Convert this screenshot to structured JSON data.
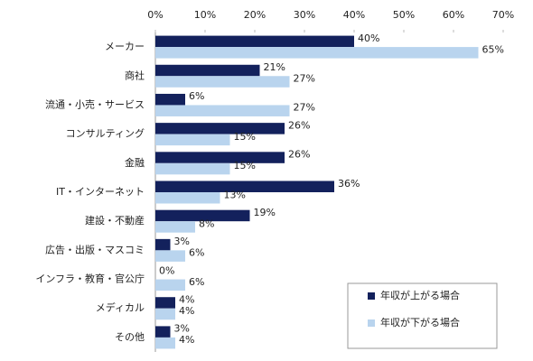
{
  "chart_data": {
    "type": "barh",
    "categories": [
      "メーカー",
      "商社",
      "流通・小売・サービス",
      "コンサルティング",
      "金融",
      "IT・インターネット",
      "建設・不動産",
      "広告・出版・マスコミ",
      "インフラ・教育・官公庁",
      "メディカル",
      "その他"
    ],
    "series": [
      {
        "name": "年収が上がる場合",
        "color": "#13215c",
        "values": [
          40,
          21,
          6,
          26,
          26,
          36,
          19,
          3,
          0,
          4,
          3
        ],
        "value_labels": [
          "40%",
          "21%",
          "6%",
          "26%",
          "26%",
          "36%",
          "19%",
          "3%",
          "0%",
          "4%",
          "3%"
        ]
      },
      {
        "name": "年収が下がる場合",
        "color": "#b9d4ee",
        "values": [
          65,
          27,
          27,
          15,
          15,
          13,
          8,
          6,
          6,
          4,
          4
        ],
        "value_labels": [
          "65%",
          "27%",
          "27%",
          "15%",
          "15%",
          "13%",
          "8%",
          "6%",
          "6%",
          "4%",
          "4%"
        ]
      }
    ],
    "xlim": [
      0,
      70
    ],
    "xticks": [
      {
        "value": 0,
        "label": "0%"
      },
      {
        "value": 10,
        "label": "10%"
      },
      {
        "value": 20,
        "label": "20%"
      },
      {
        "value": 30,
        "label": "30%"
      },
      {
        "value": 40,
        "label": "40%"
      },
      {
        "value": 50,
        "label": "50%"
      },
      {
        "value": 60,
        "label": "60%"
      },
      {
        "value": 70,
        "label": "70%"
      }
    ],
    "legend": "bottom-right"
  }
}
